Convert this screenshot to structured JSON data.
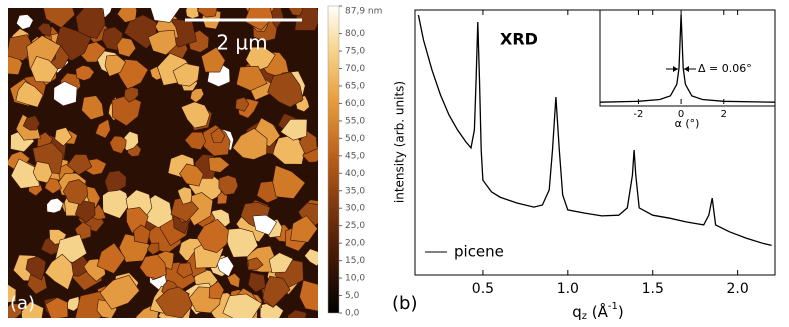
{
  "chart_data": [
    {
      "type": "image",
      "panel_label": "(a)",
      "scale_bar": "2 µm",
      "clim": [
        0,
        87.9
      ],
      "cticks": [
        {
          "value": 0,
          "label": "0,0"
        },
        {
          "value": 5,
          "label": "5,0"
        },
        {
          "value": 10,
          "label": "10,0"
        },
        {
          "value": 15,
          "label": "15,0"
        },
        {
          "value": 20,
          "label": "20,0"
        },
        {
          "value": 25,
          "label": "25,0"
        },
        {
          "value": 30,
          "label": "30,0"
        },
        {
          "value": 35,
          "label": "35,0"
        },
        {
          "value": 40,
          "label": "40,0"
        },
        {
          "value": 45,
          "label": "45,0"
        },
        {
          "value": 50,
          "label": "50,0"
        },
        {
          "value": 55,
          "label": "55,0"
        },
        {
          "value": 60,
          "label": "60,0"
        },
        {
          "value": 65,
          "label": "65,0"
        },
        {
          "value": 70,
          "label": "70,0"
        },
        {
          "value": 75,
          "label": "75,0"
        },
        {
          "value": 80,
          "label": "80,0"
        },
        {
          "value": 87.9,
          "label": "87,9 nm"
        }
      ]
    },
    {
      "type": "line",
      "panel_label": "(b)",
      "annotation": "XRD",
      "xlabel": [
        "q",
        "z",
        " (Å",
        "-1",
        ")"
      ],
      "ylabel": "intensity (arb. units)",
      "log_y": true,
      "xlim": [
        0.1,
        2.22
      ],
      "ylim": [
        1,
        10000
      ],
      "xticks": [
        0.5,
        {
          "value": 1,
          "label": "1.0"
        },
        1.5,
        {
          "value": 2,
          "label": "2.0"
        }
      ],
      "legend": "lower left",
      "series": [
        {
          "name": "picene",
          "color": "#000000",
          "x": [
            0.12,
            0.15,
            0.2,
            0.25,
            0.3,
            0.35,
            0.4,
            0.43,
            0.45,
            0.46,
            0.47,
            0.48,
            0.49,
            0.5,
            0.55,
            0.6,
            0.7,
            0.8,
            0.85,
            0.89,
            0.91,
            0.93,
            0.95,
            0.97,
            1.0,
            1.1,
            1.2,
            1.3,
            1.35,
            1.38,
            1.39,
            1.4,
            1.42,
            1.5,
            1.6,
            1.7,
            1.8,
            1.83,
            1.85,
            1.87,
            1.95,
            2.05,
            2.15,
            2.2
          ],
          "values": [
            8400,
            3520,
            1240,
            521,
            260,
            155,
            102,
            83,
            155,
            877,
            6590,
            877,
            77,
            27,
            18,
            15,
            12.2,
            10.6,
            11.4,
            19.2,
            77,
            486,
            77,
            16.1,
            9.6,
            8.6,
            7.8,
            8.0,
            10.3,
            32,
            77,
            32,
            10.3,
            8.0,
            7.2,
            6.3,
            5.7,
            8.0,
            14.5,
            5.7,
            4.5,
            3.6,
            3.0,
            2.8
          ]
        }
      ]
    },
    {
      "type": "line",
      "xlabel": "α (°)",
      "annotation": "Δ = 0.06°",
      "xlim": [
        -3.8,
        4.4
      ],
      "ylim": [
        0,
        105
      ],
      "xticks": [
        -2,
        0,
        2
      ],
      "series": [
        {
          "color": "#000000",
          "x": [
            -3.8,
            -2,
            -1,
            -0.5,
            -0.2,
            -0.1,
            0,
            0.1,
            0.2,
            0.5,
            1,
            2,
            4.4
          ],
          "values": [
            2,
            3,
            5,
            9,
            22,
            40,
            100,
            40,
            22,
            9,
            5,
            3,
            2
          ]
        }
      ]
    }
  ]
}
